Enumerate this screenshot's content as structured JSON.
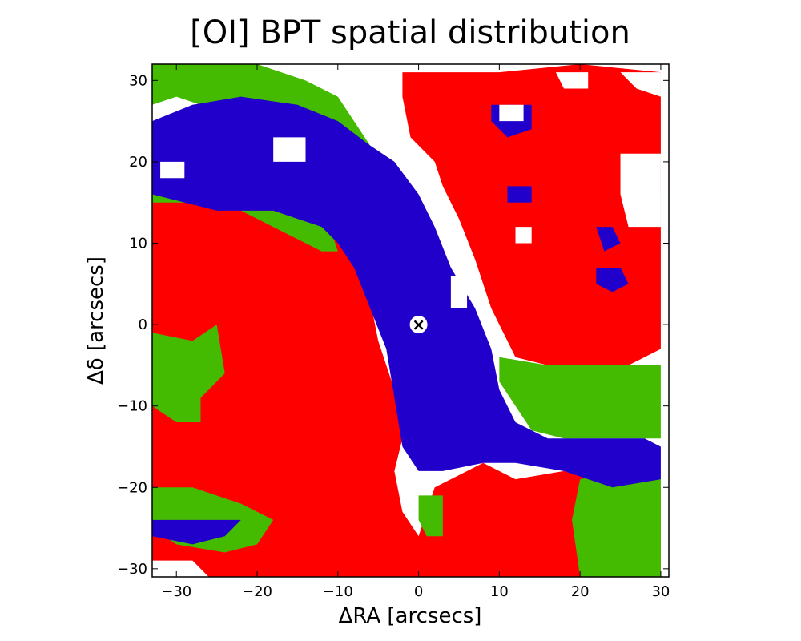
{
  "chart_data": {
    "type": "heatmap",
    "title": "[OI] BPT spatial distribution",
    "xlabel": "ΔRA [arcsecs]",
    "ylabel": "Δδ [arcsecs]",
    "xlim": [
      -33,
      31
    ],
    "ylim": [
      -31,
      32
    ],
    "xticks": [
      -30,
      -20,
      -10,
      0,
      10,
      20,
      30
    ],
    "yticks": [
      -30,
      -20,
      -10,
      0,
      10,
      20,
      30
    ],
    "xtick_labels": [
      "−30",
      "−20",
      "−10",
      "0",
      "10",
      "20",
      "30"
    ],
    "ytick_labels": [
      "−30",
      "−20",
      "−10",
      "0",
      "10",
      "20",
      "30"
    ],
    "category_colors": [
      "#ff0000",
      "#2200cc",
      "#44bb00",
      "#ffffff"
    ],
    "regions": [
      {
        "color": "#ff0000",
        "points": [
          [
            -33,
            16
          ],
          [
            -20,
            15
          ],
          [
            -12,
            14
          ],
          [
            -8,
            9
          ],
          [
            -6,
            3
          ],
          [
            -5,
            -2
          ],
          [
            -3,
            -8
          ],
          [
            -2,
            -14
          ],
          [
            -3,
            -18
          ],
          [
            -2,
            -23
          ],
          [
            0,
            -26
          ],
          [
            2,
            -20
          ],
          [
            8,
            -17
          ],
          [
            12,
            -19
          ],
          [
            18,
            -18
          ],
          [
            25,
            -20
          ],
          [
            30,
            -20
          ],
          [
            30,
            -31
          ],
          [
            -33,
            -31
          ]
        ]
      },
      {
        "color": "#ff0000",
        "points": [
          [
            -2,
            31
          ],
          [
            10,
            31
          ],
          [
            20,
            32
          ],
          [
            30,
            31
          ],
          [
            30,
            -3
          ],
          [
            26,
            -5
          ],
          [
            20,
            -6
          ],
          [
            12,
            -4
          ],
          [
            9,
            2
          ],
          [
            7,
            8
          ],
          [
            5,
            13
          ],
          [
            3,
            17
          ],
          [
            2,
            20
          ],
          [
            -1,
            23
          ],
          [
            -2,
            28
          ]
        ]
      },
      {
        "color": "#44bb00",
        "points": [
          [
            -33,
            32
          ],
          [
            -20,
            32
          ],
          [
            -14,
            30
          ],
          [
            -10,
            28
          ],
          [
            -8,
            25
          ],
          [
            -6,
            22
          ],
          [
            -3,
            20
          ],
          [
            -5,
            18
          ],
          [
            -8,
            19
          ],
          [
            -12,
            22
          ],
          [
            -18,
            26
          ],
          [
            -24,
            26
          ],
          [
            -30,
            28
          ],
          [
            -33,
            27
          ]
        ]
      },
      {
        "color": "#44bb00",
        "points": [
          [
            -33,
            15
          ],
          [
            -27,
            15
          ],
          [
            -22,
            14
          ],
          [
            -16,
            11
          ],
          [
            -12,
            9
          ],
          [
            -10,
            9
          ],
          [
            -11,
            12
          ],
          [
            -18,
            15
          ],
          [
            -25,
            15
          ],
          [
            -33,
            16
          ]
        ]
      },
      {
        "color": "#44bb00",
        "points": [
          [
            -33,
            -1
          ],
          [
            -28,
            -2
          ],
          [
            -25,
            0
          ],
          [
            -24,
            -6
          ],
          [
            -27,
            -9
          ],
          [
            -27,
            -12
          ],
          [
            -30,
            -12
          ],
          [
            -33,
            -10
          ]
        ]
      },
      {
        "color": "#44bb00",
        "points": [
          [
            -33,
            -20
          ],
          [
            -28,
            -20
          ],
          [
            -22,
            -22
          ],
          [
            -18,
            -24
          ],
          [
            -20,
            -27
          ],
          [
            -24,
            -28
          ],
          [
            -30,
            -27
          ],
          [
            -33,
            -25
          ]
        ]
      },
      {
        "color": "#44bb00",
        "points": [
          [
            10,
            -4
          ],
          [
            16,
            -5
          ],
          [
            22,
            -5
          ],
          [
            30,
            -5
          ],
          [
            30,
            -14
          ],
          [
            27,
            -14
          ],
          [
            22,
            -14
          ],
          [
            18,
            -14
          ],
          [
            14,
            -13
          ],
          [
            12,
            -10
          ],
          [
            10,
            -7
          ]
        ]
      },
      {
        "color": "#44bb00",
        "points": [
          [
            20,
            -19
          ],
          [
            25,
            -18
          ],
          [
            30,
            -19
          ],
          [
            30,
            -31
          ],
          [
            20,
            -31
          ],
          [
            19,
            -24
          ]
        ]
      },
      {
        "color": "#44bb00",
        "points": [
          [
            0,
            -21
          ],
          [
            3,
            -21
          ],
          [
            3,
            -26
          ],
          [
            1,
            -26
          ],
          [
            0,
            -24
          ]
        ]
      },
      {
        "color": "#2200cc",
        "points": [
          [
            -33,
            25
          ],
          [
            -28,
            27
          ],
          [
            -22,
            28
          ],
          [
            -15,
            27
          ],
          [
            -10,
            25
          ],
          [
            -6,
            22
          ],
          [
            -3,
            20
          ],
          [
            0,
            16
          ],
          [
            2,
            12
          ],
          [
            4,
            7
          ],
          [
            7,
            2
          ],
          [
            9,
            -3
          ],
          [
            10,
            -8
          ],
          [
            12,
            -12
          ],
          [
            16,
            -14
          ],
          [
            22,
            -14
          ],
          [
            28,
            -14
          ],
          [
            30,
            -15
          ],
          [
            30,
            -19
          ],
          [
            24,
            -20
          ],
          [
            18,
            -18
          ],
          [
            12,
            -17
          ],
          [
            8,
            -17
          ],
          [
            3,
            -18
          ],
          [
            0,
            -18
          ],
          [
            -2,
            -15
          ],
          [
            -3,
            -9
          ],
          [
            -4,
            -3
          ],
          [
            -6,
            2
          ],
          [
            -8,
            7
          ],
          [
            -10,
            10
          ],
          [
            -12,
            12
          ],
          [
            -18,
            14
          ],
          [
            -25,
            14
          ],
          [
            -33,
            16
          ]
        ]
      },
      {
        "color": "#2200cc",
        "points": [
          [
            -33,
            -24
          ],
          [
            -28,
            -24
          ],
          [
            -22,
            -24
          ],
          [
            -24,
            -26
          ],
          [
            -28,
            -27
          ],
          [
            -33,
            -26
          ]
        ]
      },
      {
        "color": "#2200cc",
        "points": [
          [
            22,
            12
          ],
          [
            24,
            12
          ],
          [
            25,
            10
          ],
          [
            23,
            9
          ]
        ]
      },
      {
        "color": "#2200cc",
        "points": [
          [
            22,
            7
          ],
          [
            25,
            7
          ],
          [
            26,
            5
          ],
          [
            24,
            4
          ],
          [
            22,
            5
          ]
        ]
      },
      {
        "color": "#2200cc",
        "points": [
          [
            9,
            27
          ],
          [
            14,
            27
          ],
          [
            14,
            24
          ],
          [
            11,
            23
          ],
          [
            9,
            25
          ]
        ]
      },
      {
        "color": "#2200cc",
        "points": [
          [
            11,
            17
          ],
          [
            14,
            17
          ],
          [
            14,
            15
          ],
          [
            11,
            15
          ]
        ]
      },
      {
        "color": "#ffffff",
        "points": [
          [
            17,
            31
          ],
          [
            21,
            31
          ],
          [
            21,
            29
          ],
          [
            18,
            29
          ]
        ]
      },
      {
        "color": "#ffffff",
        "points": [
          [
            25,
            31
          ],
          [
            30,
            31
          ],
          [
            30,
            28
          ],
          [
            27,
            29
          ]
        ]
      },
      {
        "color": "#ffffff",
        "points": [
          [
            25,
            21
          ],
          [
            30,
            21
          ],
          [
            30,
            12
          ],
          [
            26,
            12
          ],
          [
            25,
            16
          ]
        ]
      },
      {
        "color": "#ffffff",
        "points": [
          [
            -33,
            -29
          ],
          [
            -28,
            -29
          ],
          [
            -26,
            -31
          ],
          [
            -33,
            -31
          ]
        ]
      },
      {
        "color": "#ffffff",
        "points": [
          [
            10,
            27
          ],
          [
            13,
            27
          ],
          [
            13,
            25
          ],
          [
            10,
            25
          ]
        ]
      },
      {
        "color": "#ffffff",
        "points": [
          [
            12,
            12
          ],
          [
            14,
            12
          ],
          [
            14,
            10
          ],
          [
            12,
            10
          ]
        ]
      },
      {
        "color": "#ffffff",
        "points": [
          [
            -32,
            20
          ],
          [
            -29,
            20
          ],
          [
            -29,
            18
          ],
          [
            -32,
            18
          ]
        ]
      },
      {
        "color": "#ffffff",
        "points": [
          [
            -18,
            23
          ],
          [
            -14,
            23
          ],
          [
            -14,
            20
          ],
          [
            -18,
            20
          ]
        ]
      },
      {
        "color": "#ffffff",
        "points": [
          [
            4,
            6
          ],
          [
            6,
            6
          ],
          [
            6,
            2
          ],
          [
            4,
            2
          ]
        ]
      }
    ],
    "marker": {
      "x": 0,
      "y": 0,
      "symbol": "×"
    }
  }
}
